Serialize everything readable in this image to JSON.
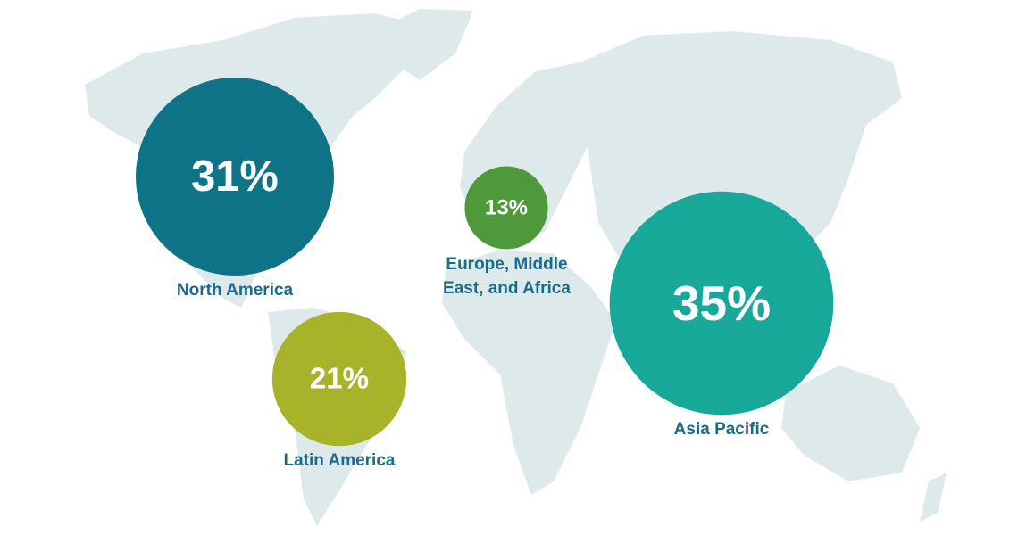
{
  "chart_data": {
    "type": "bubble",
    "categories": [
      "North America",
      "Latin America",
      "Europe, Middle East, and Africa",
      "Asia Pacific"
    ],
    "values": [
      31,
      21,
      13,
      35
    ],
    "value_labels": [
      "31%",
      "21%",
      "13%",
      "35%"
    ],
    "colors": [
      "#0f7388",
      "#a8b32a",
      "#4e9a3a",
      "#17a89a"
    ]
  }
}
